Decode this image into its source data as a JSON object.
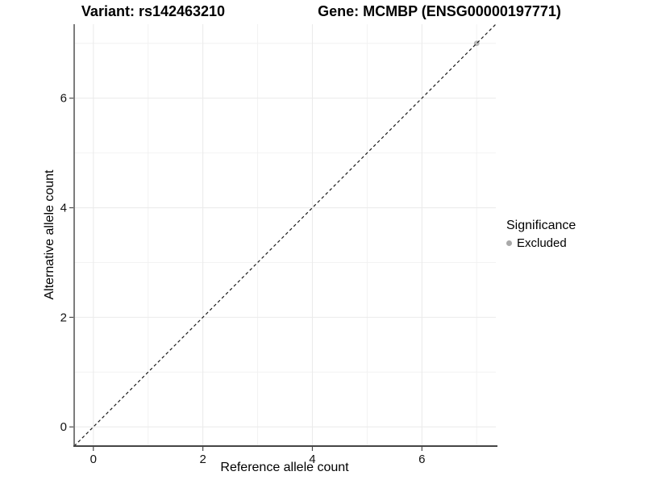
{
  "chart_data": {
    "type": "scatter",
    "title_left": "Variant: rs142463210",
    "title_right": "Gene: MCMBP (ENSG00000197771)",
    "xlabel": "Reference allele count",
    "ylabel": "Alternative allele count",
    "xlim": [
      -0.35,
      7.35
    ],
    "ylim": [
      -0.35,
      7.35
    ],
    "x_major_ticks": [
      0,
      2,
      4,
      6
    ],
    "y_major_ticks": [
      0,
      2,
      4,
      6
    ],
    "x_minor_gridlines": [
      1,
      3,
      5,
      7
    ],
    "y_minor_gridlines": [
      1,
      3,
      5,
      7
    ],
    "grid": "on",
    "legend_position": "right",
    "reference_line": {
      "slope": 1,
      "intercept": 0,
      "linestyle": "dashed",
      "color": "#1a1a1a"
    },
    "series": [
      {
        "name": "Excluded",
        "color": "#adadad",
        "points": [
          {
            "x": 7,
            "y": 7
          }
        ]
      }
    ],
    "legend": {
      "title": "Significance",
      "items": [
        {
          "label": "Excluded",
          "color": "#a9a9a9",
          "marker": "circle"
        }
      ]
    },
    "style": {
      "grid_major_color": "#ebebeb",
      "grid_minor_color": "#f2f2f2",
      "axis_line_color": "#454545",
      "tick_color": "#4d4d4d",
      "panel_background": "#ffffff"
    }
  }
}
